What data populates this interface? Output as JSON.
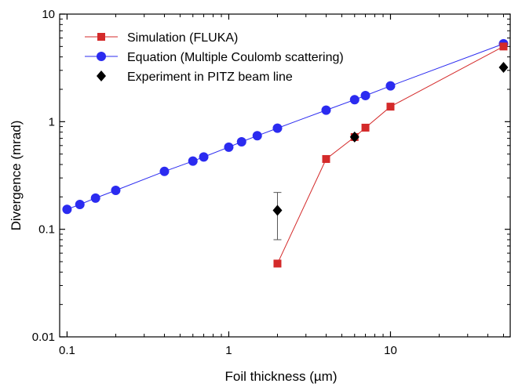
{
  "chart_data": {
    "type": "scatter",
    "xlabel": "Foil thickness (µm)",
    "ylabel": "Divergence (mrad)",
    "xscale": "log",
    "yscale": "log",
    "xlim": [
      0.09,
      55
    ],
    "ylim": [
      0.01,
      10
    ],
    "x_ticks": [
      0.1,
      1,
      10
    ],
    "x_tick_labels": [
      "0.1",
      "1",
      "10"
    ],
    "y_ticks": [
      0.01,
      0.1,
      1,
      10
    ],
    "y_tick_labels": [
      "0.01",
      "0.1",
      "1",
      "10"
    ],
    "grid": false,
    "legend_position": "top-left",
    "series": [
      {
        "name": "Simulation (FLUKA)",
        "color": "#d42a2a",
        "marker": "square",
        "line": true,
        "x": [
          2,
          4,
          6,
          7,
          10,
          50
        ],
        "y": [
          0.048,
          0.45,
          0.72,
          0.88,
          1.38,
          5.0
        ]
      },
      {
        "name": "Equation (Multiple Coulomb scattering)",
        "color": "#2b2bf0",
        "marker": "circle",
        "line": true,
        "x": [
          0.1,
          0.12,
          0.15,
          0.2,
          0.4,
          0.6,
          0.7,
          1.0,
          1.2,
          1.5,
          2,
          4,
          6,
          7,
          10,
          50
        ],
        "y": [
          0.153,
          0.17,
          0.195,
          0.23,
          0.345,
          0.43,
          0.47,
          0.58,
          0.65,
          0.74,
          0.87,
          1.28,
          1.6,
          1.75,
          2.15,
          5.3
        ]
      },
      {
        "name": "Experiment in PITZ beam line",
        "color": "#000000",
        "marker": "diamond",
        "line": false,
        "x": [
          2,
          6,
          50
        ],
        "y": [
          0.15,
          0.72,
          3.2
        ],
        "yerr_low": [
          0.08,
          null,
          null
        ],
        "yerr_high": [
          0.22,
          null,
          null
        ]
      }
    ]
  }
}
